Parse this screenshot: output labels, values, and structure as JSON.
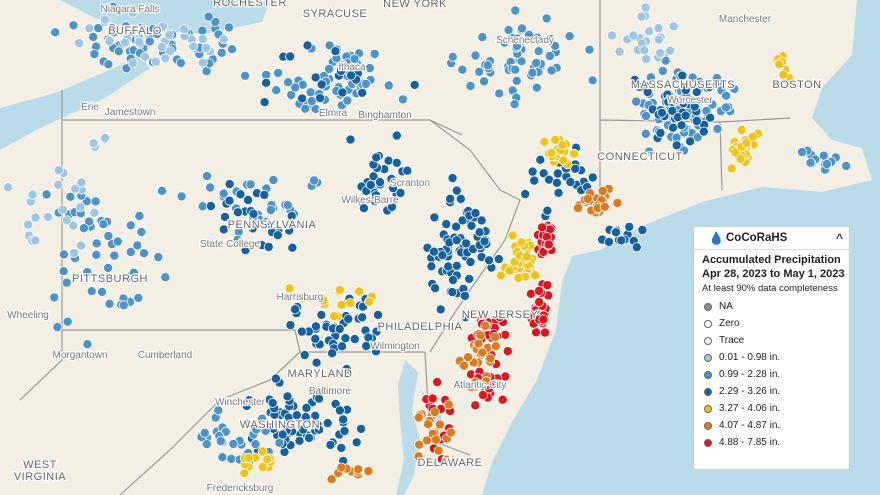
{
  "map": {
    "places": [
      "Niagara Falls",
      "ROCHESTER",
      "BUFFALO",
      "SYRACUSE",
      "NEW YORK",
      "Schenectady",
      "Manchester",
      "MASSACHUSETTS",
      "BOSTON",
      "Worcester",
      "Erie",
      "Jamestown",
      "Ithaca",
      "Elmira",
      "Binghamton",
      "Scranton",
      "Wilkes-Barre",
      "PENNSYLVANIA",
      "State College",
      "PITTSBURGH",
      "Wheeling",
      "Harrisburg",
      "PHILADELPHIA",
      "NEW JERSEY",
      "Morgantown",
      "Cumberland",
      "MARYLAND",
      "Baltimore",
      "Winchester",
      "WASHINGTON",
      "WEST",
      "VIRGINIA",
      "DELAWARE",
      "Atlantic City",
      "Wilmington",
      "CONNECTICUT",
      "Fredericksburg"
    ],
    "legend": {
      "brand": "CoCoRaHS",
      "title": "Accumulated Precipitation",
      "dates": "Apr 28, 2023 to May 1, 2023",
      "note": "At least 90% data completeness",
      "items": [
        {
          "label": "NA",
          "color": "#8c8c8c"
        },
        {
          "label": "Zero",
          "color": "#ffffff"
        },
        {
          "label": "Trace",
          "color": "#f4f4f4"
        },
        {
          "label": "0.01 - 0.98 in.",
          "color": "#9cc6e4"
        },
        {
          "label": "0.99 - 2.28 in.",
          "color": "#4b93c8"
        },
        {
          "label": "2.29 - 3.26 in.",
          "color": "#15609f"
        },
        {
          "label": "3.27 - 4.06 in.",
          "color": "#f2c314"
        },
        {
          "label": "4.07 - 4.87 in.",
          "color": "#dd7a1c"
        },
        {
          "label": "4.88 - 7.85 in.",
          "color": "#e0141c"
        }
      ]
    }
  }
}
